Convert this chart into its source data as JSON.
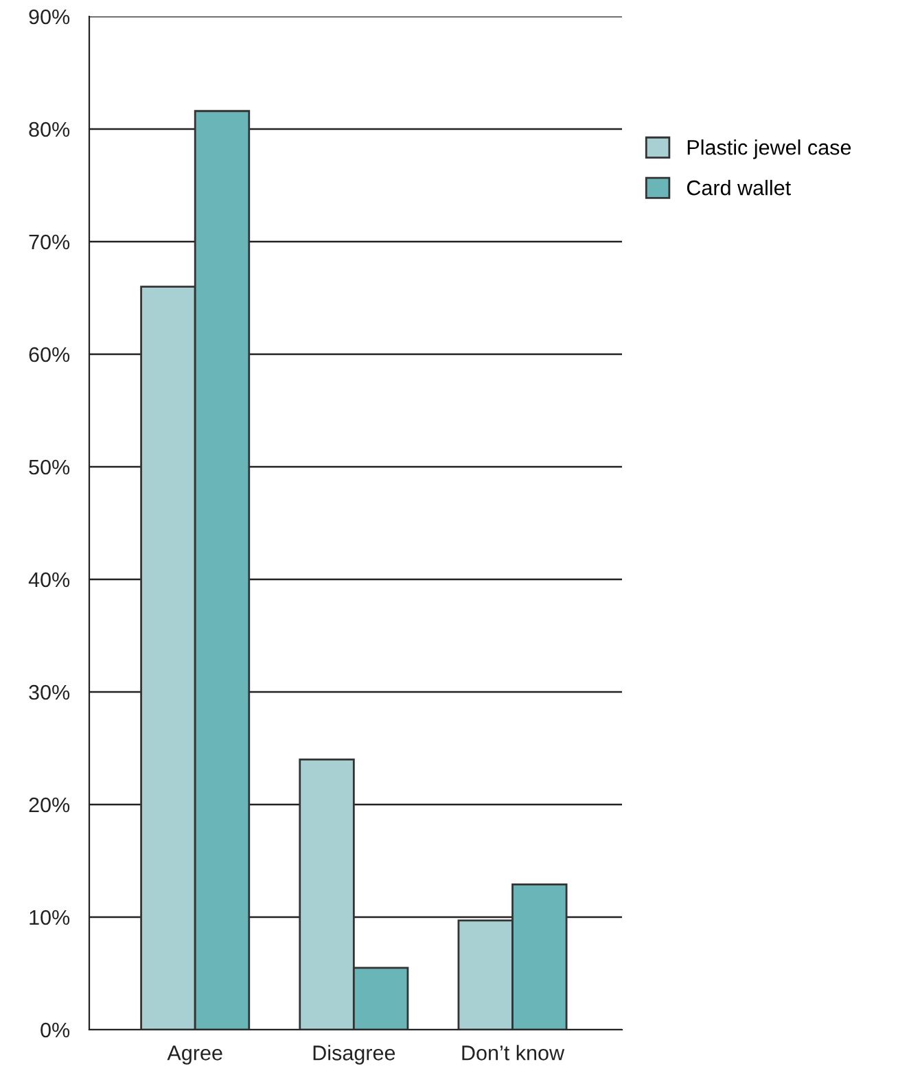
{
  "chart_data": {
    "type": "bar",
    "categories": [
      "Agree",
      "Disagree",
      "Don’t know"
    ],
    "series": [
      {
        "name": "Plastic jewel case",
        "color": "#a8cfd2",
        "values": [
          66.0,
          24.0,
          9.7
        ]
      },
      {
        "name": "Card wallet",
        "color": "#6ab5b8",
        "values": [
          81.6,
          5.5,
          12.9
        ]
      }
    ],
    "ylim": [
      0,
      90
    ],
    "yticks": [
      {
        "value": 0,
        "label": "0%"
      },
      {
        "value": 10,
        "label": "10%"
      },
      {
        "value": 20,
        "label": "20%"
      },
      {
        "value": 30,
        "label": "30%"
      },
      {
        "value": 40,
        "label": "40%"
      },
      {
        "value": 50,
        "label": "50%"
      },
      {
        "value": 60,
        "label": "60%"
      },
      {
        "value": 70,
        "label": "70%"
      },
      {
        "value": 80,
        "label": "80%"
      },
      {
        "value": 90,
        "label": "90%"
      }
    ],
    "grid": "y",
    "legend": "right"
  }
}
